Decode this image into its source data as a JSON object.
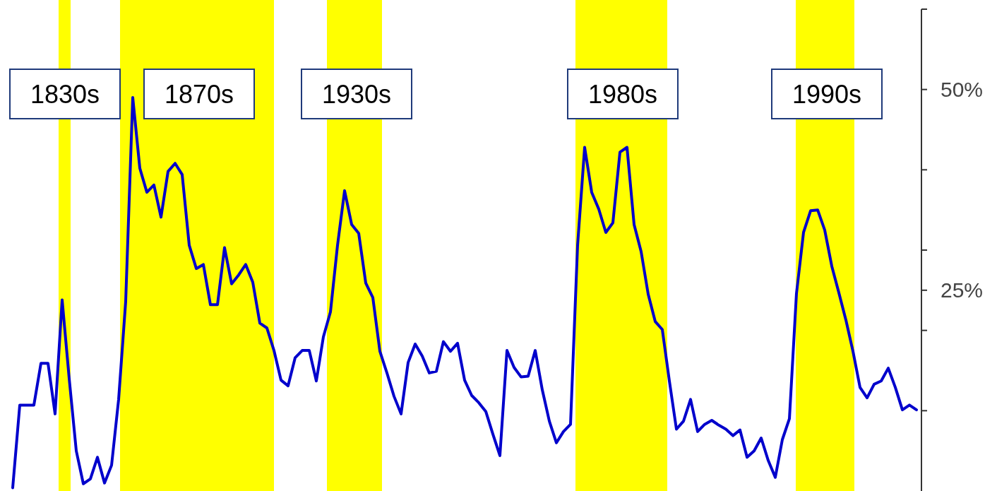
{
  "chart_data": {
    "type": "line",
    "tick_labels": "y",
    "ylim": [
      0,
      60
    ],
    "categories": [
      null,
      null,
      null,
      null,
      null,
      null,
      null,
      null,
      null,
      null,
      null,
      null,
      null,
      null,
      null,
      null,
      null,
      null,
      null,
      null,
      null,
      null,
      null,
      null,
      null,
      null,
      null,
      null,
      null,
      null,
      null,
      null,
      null,
      null,
      null,
      null,
      null,
      null,
      null,
      null,
      null,
      null,
      null,
      null,
      null,
      null,
      null,
      null,
      null,
      null,
      null,
      null,
      null,
      null,
      null,
      null,
      null,
      null,
      null,
      null,
      null,
      null,
      null,
      null,
      null,
      null,
      null,
      null,
      null,
      null,
      null,
      null,
      null,
      null,
      null,
      null,
      null,
      null,
      null,
      null,
      null,
      null,
      null,
      null,
      null,
      null,
      null,
      null,
      null,
      null,
      null,
      null,
      null,
      null,
      null,
      null,
      null,
      null,
      null,
      null,
      null,
      null,
      null,
      null,
      null,
      null,
      null,
      null,
      null,
      null,
      null,
      null,
      null,
      null,
      null,
      null,
      null,
      null,
      null,
      null,
      null,
      null,
      null,
      null,
      null,
      null,
      null,
      null,
      null
    ],
    "yticks": [
      {
        "value": 60,
        "label": null
      },
      {
        "value": 50,
        "label": "50%"
      },
      {
        "value": 40,
        "label": null
      },
      {
        "value": 30,
        "label": null
      },
      {
        "value": 25,
        "label": "25%"
      },
      {
        "value": 20,
        "label": null
      },
      {
        "value": 10,
        "label": null
      }
    ],
    "annotations": [
      "1830s",
      "1870s",
      "1930s",
      "1980s",
      "1990s"
    ],
    "series": [
      {
        "color": "#0000cc",
        "line_style": "solid",
        "marker": "none",
        "values": [
          0.4,
          10.7,
          10.7,
          10.7,
          15.9,
          15.9,
          9.6,
          23.8,
          14.0,
          5.0,
          0.9,
          1.5,
          4.2,
          1.0,
          3.2,
          11.4,
          23.6,
          49.0,
          40.2,
          37.2,
          38.1,
          34.1,
          39.8,
          40.8,
          39.4,
          30.6,
          27.7,
          28.2,
          23.2,
          23.2,
          30.3,
          25.8,
          26.9,
          28.2,
          26.0,
          20.9,
          20.3,
          17.5,
          13.8,
          13.1,
          16.6,
          17.5,
          17.5,
          13.7,
          19.2,
          22.3,
          30.6,
          37.4,
          33.2,
          32.1,
          25.9,
          24.1,
          17.4,
          14.7,
          11.8,
          9.6,
          16.0,
          18.3,
          16.8,
          14.7,
          14.9,
          18.6,
          17.4,
          18.4,
          13.8,
          11.9,
          11.0,
          9.9,
          7.1,
          4.4,
          17.5,
          15.4,
          14.2,
          14.3,
          17.5,
          12.6,
          8.7,
          6.0,
          7.4,
          8.3,
          30.6,
          42.8,
          37.2,
          35.1,
          32.2,
          33.4,
          42.2,
          42.8,
          33.2,
          29.8,
          24.5,
          21.1,
          20.1,
          13.7,
          7.7,
          8.7,
          11.4,
          7.4,
          8.3,
          8.8,
          8.2,
          7.7,
          6.9,
          7.6,
          4.2,
          5.0,
          6.6,
          3.8,
          1.7,
          6.4,
          9.0,
          24.6,
          32.2,
          34.9,
          35.0,
          32.5,
          28.0,
          24.7,
          21.3,
          17.4,
          12.9,
          11.6,
          13.3,
          13.7,
          15.3,
          12.9,
          10.1,
          10.7,
          10.1
        ]
      }
    ]
  }
}
